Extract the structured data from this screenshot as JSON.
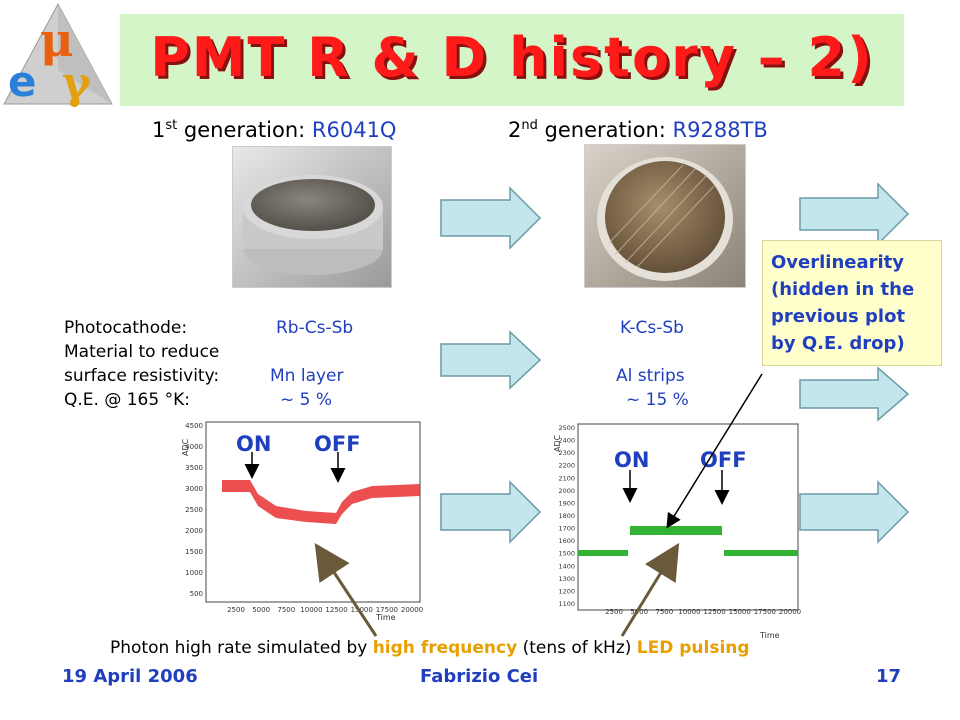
{
  "header": {
    "title": "PMT R & D history – 2)",
    "logo_letters": [
      "μ",
      "e",
      "γ"
    ]
  },
  "gen1": {
    "prefix": "1",
    "sup": "st",
    "text": " generation: ",
    "model": "R6041Q"
  },
  "gen2": {
    "prefix": "2",
    "sup": "nd",
    "text": " generation: ",
    "model": "R9288TB"
  },
  "props": {
    "photocathode_label": "Photocathode:",
    "photocathode_1": "Rb-Cs-Sb",
    "photocathode_2": "K-Cs-Sb",
    "material_label_1": "Material to reduce",
    "material_label_2": "surface resistivity:",
    "material_1": "Mn layer",
    "material_2": "Al strips",
    "qe_label": "Q.E. @ 165 °K:",
    "qe_1": "~ 5 %",
    "qe_2": "~ 15 %"
  },
  "note": {
    "lines": [
      "Overlinearity",
      "(hidden in the",
      "previous plot",
      "by Q.E. drop)"
    ]
  },
  "plot1": {
    "on_label": "ON",
    "off_label": "OFF",
    "y_axis_label": "ADC",
    "x_axis_label": "Time",
    "y_ticks": [
      "4500",
      "4000",
      "3500",
      "3000",
      "2500",
      "2000",
      "1500",
      "1000",
      "500"
    ],
    "x_ticks": [
      "2500",
      "5000",
      "7500",
      "10000",
      "12500",
      "15000",
      "17500",
      "20000"
    ],
    "color": "#e83030"
  },
  "plot2": {
    "on_label": "ON",
    "off_label": "OFF",
    "y_axis_label": "ADC",
    "x_axis_label": "Time",
    "y_ticks": [
      "2500",
      "2400",
      "2300",
      "2200",
      "2100",
      "2000",
      "1900",
      "1800",
      "1700",
      "1600",
      "1500",
      "1400",
      "1300",
      "1200",
      "1100"
    ],
    "x_ticks": [
      "2500",
      "5000",
      "7500",
      "10000",
      "12500",
      "15000",
      "17500",
      "20000"
    ],
    "color": "#33b333"
  },
  "bottom_line": {
    "part1": "Photon high rate simulated by ",
    "part2": "high frequency",
    "part3": " (tens of kHz) ",
    "part4": "LED pulsing"
  },
  "footer": {
    "date": "19 April 2006",
    "author": "Fabrizio Cei",
    "page": "17"
  },
  "colors": {
    "title": "#ff1a1a",
    "band": "#d4f5c8",
    "blue_text": "#1f3fbf",
    "highlight": "#e8a000",
    "arrow_fill": "#c2e6ec",
    "arrow_stroke": "#6a9aa6"
  }
}
